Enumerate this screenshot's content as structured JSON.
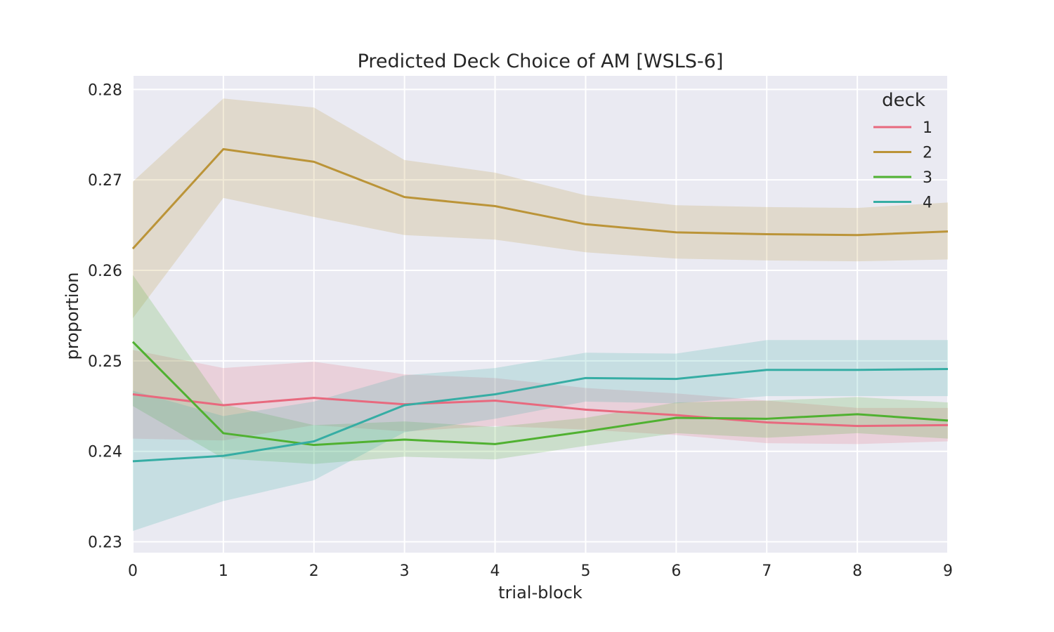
{
  "chart_data": {
    "type": "line",
    "title": "Predicted Deck Choice of AM [WSLS-6]",
    "xlabel": "trial-block",
    "ylabel": "proportion",
    "x": [
      0,
      1,
      2,
      3,
      4,
      5,
      6,
      7,
      8,
      9
    ],
    "xlim": [
      0,
      9
    ],
    "ylim": [
      0.2288,
      0.2815
    ],
    "xticks": [
      "0",
      "1",
      "2",
      "3",
      "4",
      "5",
      "6",
      "7",
      "8",
      "9"
    ],
    "yticks": [
      0.23,
      0.24,
      0.25,
      0.26,
      0.27,
      0.28
    ],
    "ytick_labels": [
      "0.23",
      "0.24",
      "0.25",
      "0.26",
      "0.27",
      "0.28"
    ],
    "grid": true,
    "background": "#eaeaf2",
    "legend": {
      "title": "deck",
      "placement": "top-right"
    },
    "series": [
      {
        "name": "1",
        "color": "#e8697e",
        "values": [
          0.2463,
          0.2451,
          0.2459,
          0.2452,
          0.2456,
          0.2446,
          0.244,
          0.2432,
          0.2428,
          0.2429
        ],
        "lower": [
          0.2414,
          0.2412,
          0.2429,
          0.2422,
          0.2428,
          0.2424,
          0.2418,
          0.2409,
          0.2408,
          0.2411
        ],
        "upper": [
          0.2512,
          0.2492,
          0.2499,
          0.2485,
          0.2481,
          0.247,
          0.2464,
          0.2456,
          0.2448,
          0.2448
        ]
      },
      {
        "name": "2",
        "color": "#bb9438",
        "values": [
          0.2624,
          0.2734,
          0.272,
          0.2681,
          0.2671,
          0.2651,
          0.2642,
          0.264,
          0.2639,
          0.2643
        ],
        "lower": [
          0.2547,
          0.268,
          0.2659,
          0.2639,
          0.2634,
          0.262,
          0.2613,
          0.2611,
          0.261,
          0.2612
        ],
        "upper": [
          0.2698,
          0.279,
          0.278,
          0.2722,
          0.2708,
          0.2683,
          0.2672,
          0.267,
          0.2669,
          0.2675
        ]
      },
      {
        "name": "3",
        "color": "#50b131",
        "values": [
          0.2521,
          0.242,
          0.2407,
          0.2413,
          0.2408,
          0.2422,
          0.2437,
          0.2436,
          0.2441,
          0.2434
        ],
        "lower": [
          0.245,
          0.2392,
          0.2386,
          0.2394,
          0.2391,
          0.2406,
          0.242,
          0.2415,
          0.242,
          0.2414
        ],
        "upper": [
          0.2595,
          0.2452,
          0.2429,
          0.2433,
          0.2427,
          0.2437,
          0.2454,
          0.2456,
          0.246,
          0.2454
        ]
      },
      {
        "name": "4",
        "color": "#36ada4",
        "values": [
          0.2389,
          0.2395,
          0.2411,
          0.2451,
          0.2463,
          0.2481,
          0.248,
          0.249,
          0.249,
          0.2491
        ],
        "lower": [
          0.2312,
          0.2345,
          0.2368,
          0.2421,
          0.2436,
          0.2455,
          0.2453,
          0.2461,
          0.2461,
          0.2461
        ],
        "upper": [
          0.2467,
          0.2439,
          0.2455,
          0.2484,
          0.2492,
          0.2509,
          0.2508,
          0.2523,
          0.2523,
          0.2523
        ]
      }
    ]
  }
}
